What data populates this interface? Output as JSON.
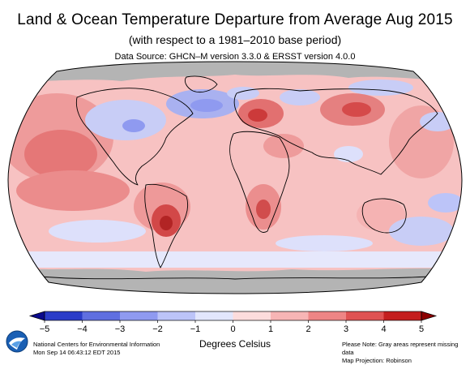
{
  "header": {
    "title": "Land & Ocean Temperature Departure from Average Aug 2015",
    "subtitle": "(with respect to a 1981–2010 base period)",
    "data_source": "Data Source: GHCN–M version 3.3.0 & ERSST version 4.0.0"
  },
  "map": {
    "projection": "Robinson",
    "missing_data_color": "#b4b4b4",
    "regions": [
      {
        "name": "arctic-missing",
        "anomaly": null
      },
      {
        "name": "antarctic-missing",
        "anomaly": null
      },
      {
        "name": "north-pacific-east",
        "anomaly": 2.5
      },
      {
        "name": "tropical-pacific-east",
        "anomaly": 2.0
      },
      {
        "name": "south-america-central",
        "anomaly": 3.5
      },
      {
        "name": "north-atlantic-subpolar",
        "anomaly": -2.0
      },
      {
        "name": "europe-central",
        "anomaly": 2.5
      },
      {
        "name": "east-asia-north",
        "anomaly": 2.5
      },
      {
        "name": "southern-africa",
        "anomaly": 2.0
      },
      {
        "name": "southern-ocean-band",
        "anomaly": -0.5
      },
      {
        "name": "southwest-pacific",
        "anomaly": -1.0
      }
    ]
  },
  "colorbar": {
    "ticks": [
      "−5",
      "−4",
      "−3",
      "−2",
      "−1",
      "0",
      "1",
      "2",
      "3",
      "4",
      "5"
    ],
    "colors": [
      "#0a0a8c",
      "#2a3cc8",
      "#5f6fe0",
      "#8f9af0",
      "#bcc4f8",
      "#e2e6fc",
      "#fcdcdc",
      "#f7b5b5",
      "#ee8585",
      "#df5252",
      "#c41e1e",
      "#8c0000"
    ],
    "units_label": "Degrees Celsius"
  },
  "footer": {
    "org": "National Centers for Environmental Information",
    "timestamp": "Mon Sep 14 06:43:12 EDT 2015",
    "note": "Please Note: Gray areas represent missing data",
    "projection": "Map Projection: Robinson"
  }
}
